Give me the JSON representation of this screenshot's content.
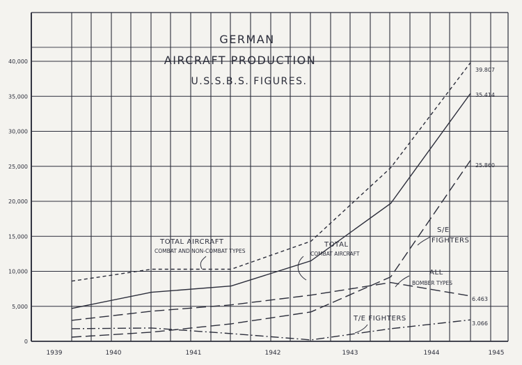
{
  "chart_data": {
    "type": "line",
    "title": [
      "GERMAN",
      "AIRCRAFT PRODUCTION",
      "U.S.S.B.S. FIGURES."
    ],
    "xlabel": "",
    "ylabel": "",
    "x_ticks": [
      "1939",
      "1940",
      "1941",
      "1942",
      "1943",
      "1944",
      "1945"
    ],
    "y_ticks": [
      "0",
      "5,000",
      "10,000",
      "15,000",
      "20,000",
      "25,000",
      "30,000",
      "35,000",
      "40,000"
    ],
    "ylim": [
      0,
      40000
    ],
    "grid": true,
    "series": [
      {
        "name": "TOTAL AIRCRAFT",
        "style": "short-dash",
        "x": [
          1939.5,
          1940.5,
          1941.5,
          1942.5,
          1943.5,
          1944.5
        ],
        "y": [
          8600,
          10300,
          10300,
          14300,
          24800,
          39807
        ]
      },
      {
        "name": "TOTAL COMBAT AIRCRAFT",
        "style": "solid",
        "x": [
          1939.5,
          1940.5,
          1941.5,
          1942.5,
          1943.5,
          1944.5
        ],
        "y": [
          4700,
          7000,
          7900,
          11500,
          19700,
          35414
        ]
      },
      {
        "name": "S/E FIGHTERS",
        "style": "long-dash",
        "x": [
          1939.5,
          1940.5,
          1941.5,
          1942.5,
          1943.5,
          1944.5
        ],
        "y": [
          600,
          1300,
          2500,
          4200,
          9200,
          25860
        ]
      },
      {
        "name": "ALL BOMBER TYPES",
        "style": "long-dash",
        "x": [
          1939.5,
          1940.5,
          1941.5,
          1942.5,
          1943.5,
          1944.5
        ],
        "y": [
          3000,
          4300,
          5200,
          6600,
          8400,
          6463
        ]
      },
      {
        "name": "T/E FIGHTERS",
        "style": "dash-dot",
        "x": [
          1939.5,
          1940.5,
          1941.5,
          1942.5,
          1943.5,
          1944.5
        ],
        "y": [
          1800,
          1900,
          1100,
          200,
          1800,
          3066
        ]
      }
    ],
    "labels": {
      "total_aircraft": "TOTAL AIRCRAFT",
      "total_aircraft_sub": "COMBAT AND NON-COMBAT TYPES",
      "total_combat_1": "TOTAL",
      "total_combat_2": "COMBAT AIRCRAFT",
      "se_1": "S/E",
      "se_2": "FIGHTERS",
      "bomber_1": "ALL",
      "bomber_2": "BOMBER TYPES",
      "te": "T/E FIGHTERS"
    },
    "end_values": [
      "39.807",
      "35.414",
      "25.860",
      "6.463",
      "3.066"
    ],
    "colors": {
      "ink": "#2b2d3a",
      "paper": "#f4f3ef"
    }
  }
}
